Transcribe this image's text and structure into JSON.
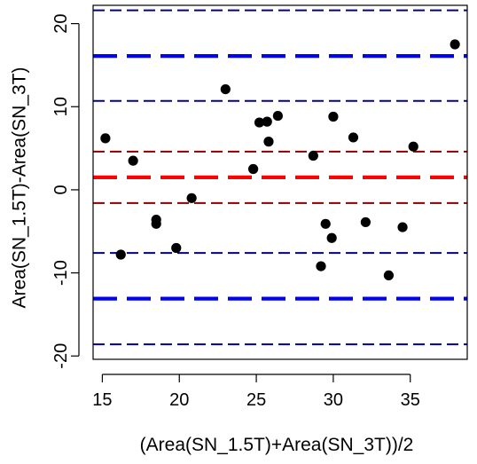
{
  "chart_data": {
    "type": "scatter",
    "title": "",
    "xlabel": "(Area(SN_1.5T)+Area(SN_3T))/2",
    "ylabel": "Area(SN_1.5T)-Area(SN_3T)",
    "xlim": [
      14.4,
      38.7
    ],
    "ylim": [
      -20.4,
      22.2
    ],
    "xticks": [
      15,
      20,
      25,
      30,
      35
    ],
    "yticks": [
      -20,
      -10,
      0,
      10,
      20
    ],
    "points": [
      {
        "x": 15.2,
        "y": 6.2
      },
      {
        "x": 16.2,
        "y": -7.8
      },
      {
        "x": 17.0,
        "y": 3.5
      },
      {
        "x": 18.5,
        "y": -3.6
      },
      {
        "x": 18.5,
        "y": -4.1
      },
      {
        "x": 19.8,
        "y": -7.0
      },
      {
        "x": 20.8,
        "y": -1.0
      },
      {
        "x": 23.0,
        "y": 12.1
      },
      {
        "x": 24.8,
        "y": 2.5
      },
      {
        "x": 25.2,
        "y": 8.1
      },
      {
        "x": 25.7,
        "y": 8.2
      },
      {
        "x": 25.8,
        "y": 5.8
      },
      {
        "x": 26.4,
        "y": 8.9
      },
      {
        "x": 28.7,
        "y": 4.1
      },
      {
        "x": 29.2,
        "y": -9.2
      },
      {
        "x": 29.5,
        "y": -4.1
      },
      {
        "x": 29.9,
        "y": -5.8
      },
      {
        "x": 30.0,
        "y": 8.8
      },
      {
        "x": 31.3,
        "y": 6.3
      },
      {
        "x": 32.1,
        "y": -3.9
      },
      {
        "x": 33.6,
        "y": -10.3
      },
      {
        "x": 34.5,
        "y": -4.5
      },
      {
        "x": 35.2,
        "y": 5.2
      },
      {
        "x": 37.9,
        "y": 17.5
      }
    ],
    "reference_lines": [
      {
        "y": 21.6,
        "color": "#00008B",
        "style": "thin-dashed"
      },
      {
        "y": 16.1,
        "color": "#0000FF",
        "style": "thick-dashed"
      },
      {
        "y": 10.7,
        "color": "#00008B",
        "style": "thin-dashed"
      },
      {
        "y": 4.6,
        "color": "#8B0000",
        "style": "thin-dashed"
      },
      {
        "y": 1.5,
        "color": "#FF0000",
        "style": "thick-dashed"
      },
      {
        "y": -1.6,
        "color": "#8B0000",
        "style": "thin-dashed"
      },
      {
        "y": -7.6,
        "color": "#00008B",
        "style": "thin-dashed"
      },
      {
        "y": -13.1,
        "color": "#0000FF",
        "style": "thick-dashed"
      },
      {
        "y": -18.6,
        "color": "#00008B",
        "style": "thin-dashed"
      }
    ],
    "grid": false,
    "legend": "none"
  }
}
